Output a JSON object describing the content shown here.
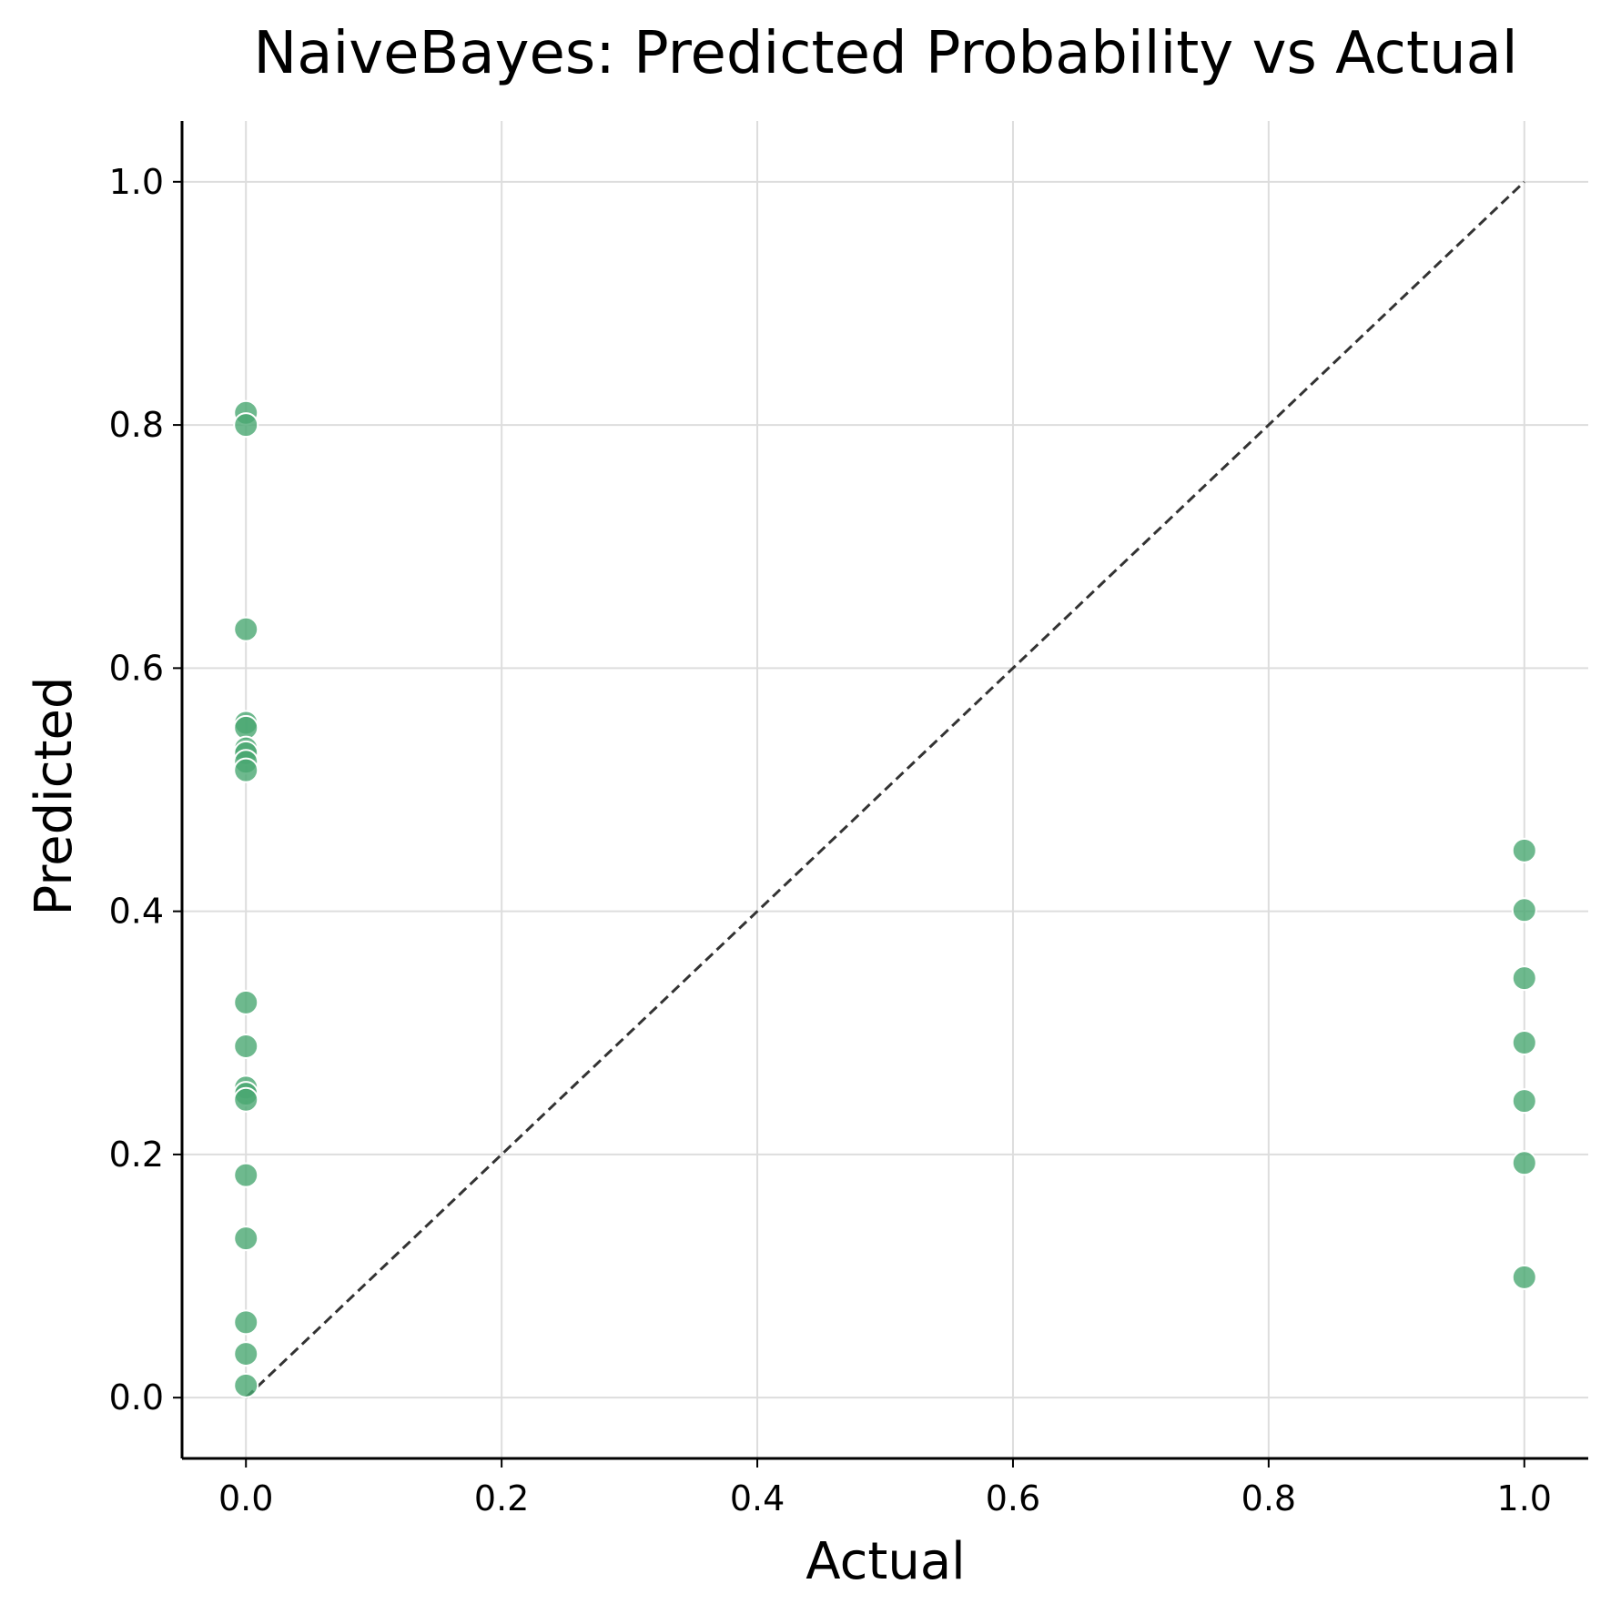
{
  "chart_data": {
    "type": "scatter",
    "title": "NaiveBayes: Predicted Probability vs Actual",
    "xlabel": "Actual",
    "ylabel": "Predicted",
    "xlim": [
      -0.05,
      1.05
    ],
    "ylim": [
      -0.05,
      1.05
    ],
    "x_ticks": [
      "0.0",
      "0.2",
      "0.4",
      "0.6",
      "0.8",
      "1.0"
    ],
    "y_ticks": [
      "0.0",
      "0.2",
      "0.4",
      "0.6",
      "0.8",
      "1.0"
    ],
    "grid": true,
    "legend": "none",
    "reference_line": {
      "from": [
        0,
        0
      ],
      "to": [
        1,
        1
      ],
      "style": "dashed"
    },
    "series": [
      {
        "color": "#4aa772",
        "points": [
          [
            0,
            0.81
          ],
          [
            0,
            0.8
          ],
          [
            0,
            0.632
          ],
          [
            0,
            0.555
          ],
          [
            0,
            0.551
          ],
          [
            0,
            0.534
          ],
          [
            0,
            0.53
          ],
          [
            0,
            0.523
          ],
          [
            0,
            0.516
          ],
          [
            0,
            0.325
          ],
          [
            0,
            0.289
          ],
          [
            0,
            0.255
          ],
          [
            0,
            0.25
          ],
          [
            0,
            0.245
          ],
          [
            0,
            0.183
          ],
          [
            0,
            0.131
          ],
          [
            0,
            0.062
          ],
          [
            0,
            0.036
          ],
          [
            0,
            0.01
          ],
          [
            1,
            0.45
          ],
          [
            1,
            0.401
          ],
          [
            1,
            0.345
          ],
          [
            1,
            0.292
          ],
          [
            1,
            0.244
          ],
          [
            1,
            0.193
          ],
          [
            1,
            0.099
          ]
        ]
      }
    ],
    "colors": {
      "grid": "#dddddd",
      "axis": "#000000",
      "reference_line": "#333333",
      "point_stroke": "#ffffff"
    }
  }
}
